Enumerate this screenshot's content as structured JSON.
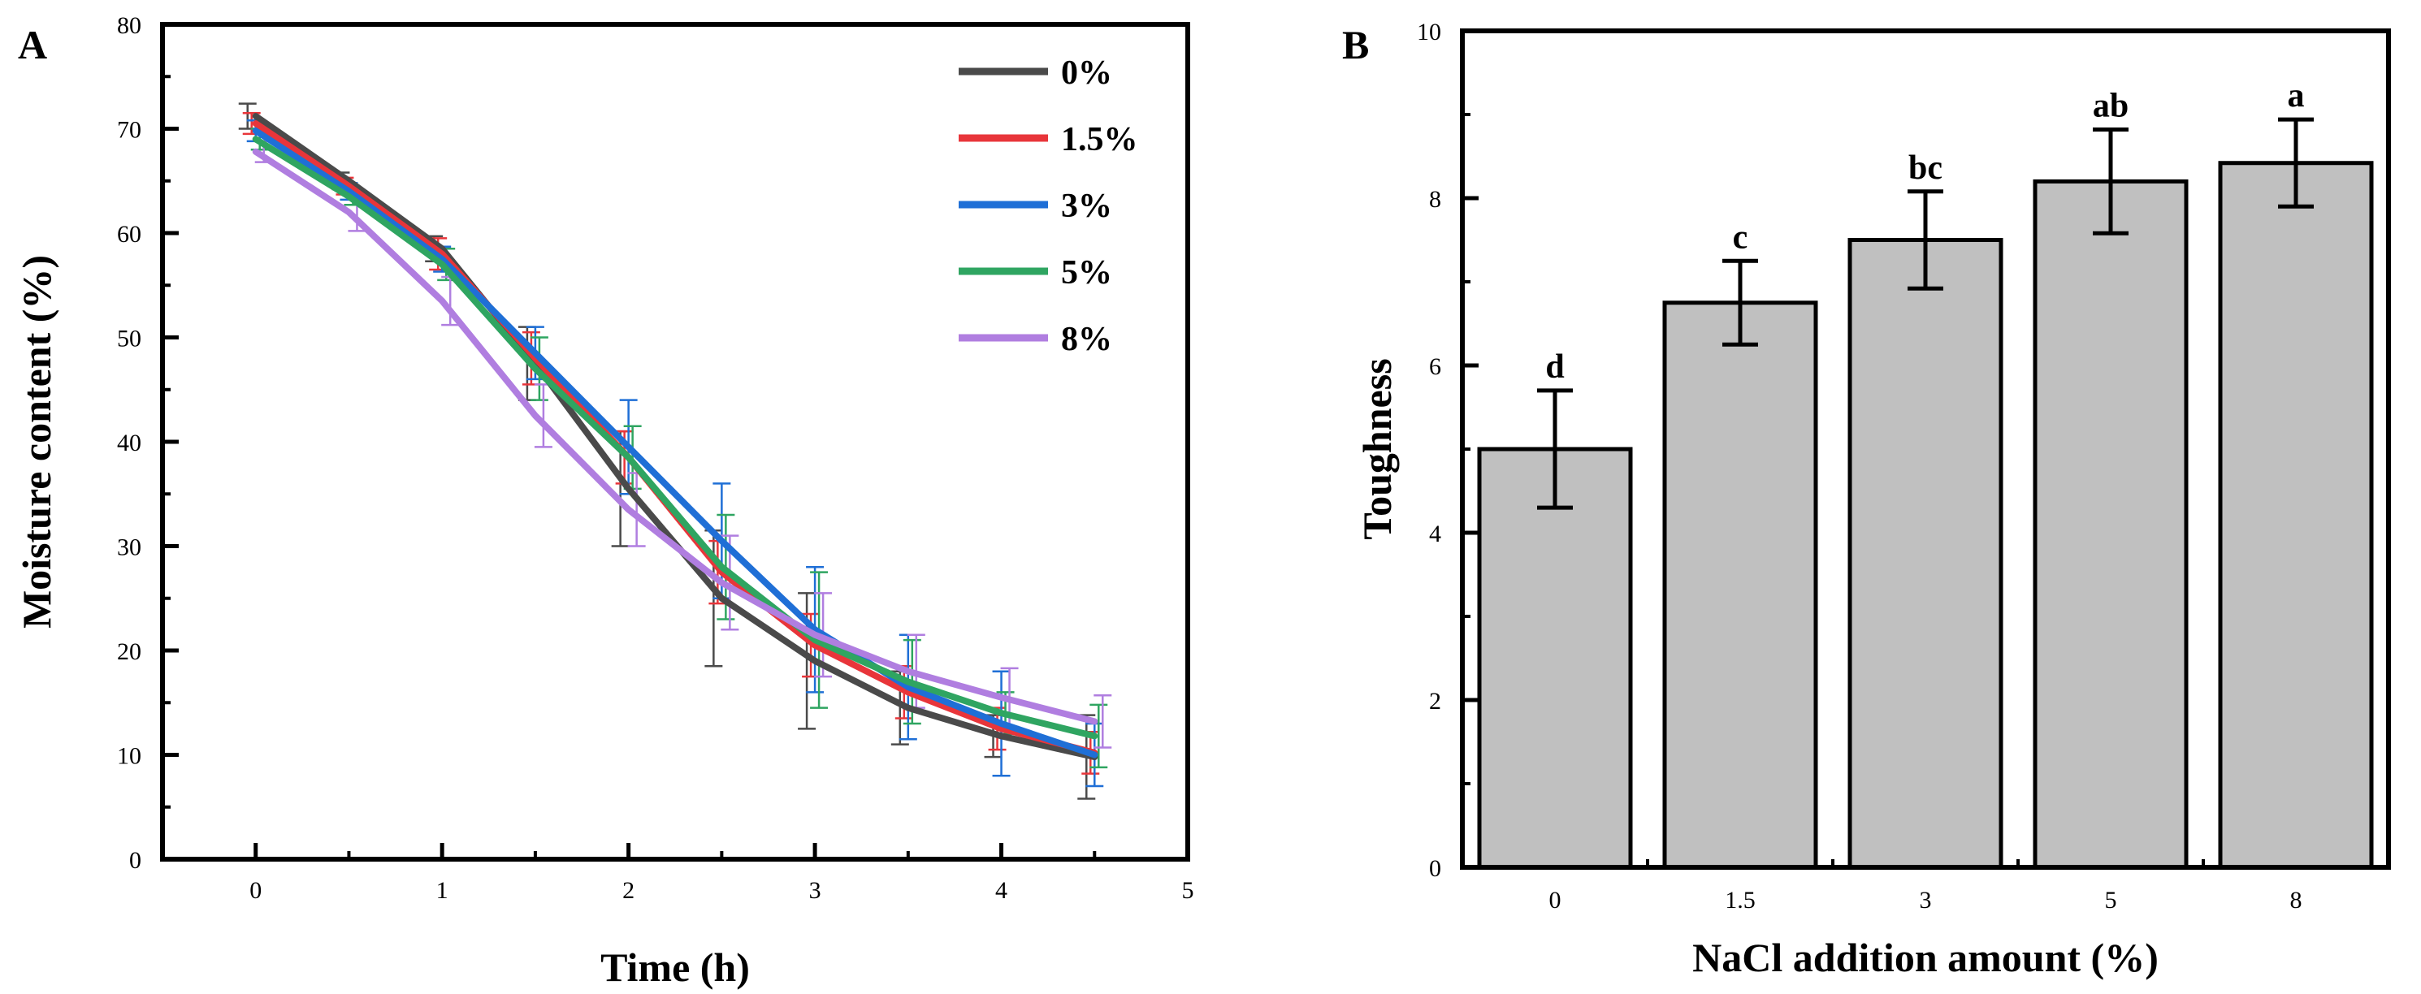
{
  "chart_data": [
    {
      "type": "line",
      "panel": "A",
      "xlabel": "Time (h)",
      "ylabel": "Moisture content (%)",
      "xlim": [
        -0.5,
        5
      ],
      "ylim": [
        0,
        80
      ],
      "xticks": [
        0,
        1,
        2,
        3,
        4,
        5
      ],
      "yticks": [
        0,
        10,
        20,
        30,
        40,
        50,
        60,
        70,
        80
      ],
      "legend_position": "top-right",
      "x": [
        0,
        0.5,
        1,
        1.5,
        2,
        2.5,
        3,
        3.5,
        4,
        4.5
      ],
      "series": [
        {
          "name": "0%",
          "color": "#4a4a4a",
          "values": [
            71.2,
            65.0,
            58.5,
            47.5,
            35.5,
            25.0,
            19.0,
            14.5,
            11.8,
            9.8
          ],
          "errors": [
            1.2,
            0.8,
            1.2,
            3.5,
            5.5,
            6.5,
            6.5,
            3.5,
            2.0,
            4.0
          ]
        },
        {
          "name": "1.5%",
          "color": "#e8353a",
          "values": [
            70.5,
            64.5,
            58.0,
            48.0,
            38.5,
            27.5,
            20.5,
            16.0,
            12.5,
            10.2
          ],
          "errors": [
            1.0,
            0.8,
            1.5,
            2.5,
            2.5,
            3.0,
            3.0,
            2.5,
            2.0,
            2.0
          ]
        },
        {
          "name": "3%",
          "color": "#1f6fd6",
          "values": [
            69.8,
            64.0,
            57.5,
            48.5,
            39.5,
            30.5,
            22.0,
            16.5,
            13.0,
            10.0
          ],
          "errors": [
            1.0,
            0.8,
            1.2,
            2.5,
            4.5,
            5.5,
            6.0,
            5.0,
            5.0,
            3.0
          ]
        },
        {
          "name": "5%",
          "color": "#2fa561",
          "values": [
            69.0,
            63.5,
            57.0,
            47.0,
            38.5,
            28.0,
            21.0,
            17.0,
            14.0,
            11.8
          ],
          "errors": [
            1.0,
            0.8,
            1.5,
            3.0,
            3.0,
            5.0,
            6.5,
            4.0,
            2.0,
            3.0
          ]
        },
        {
          "name": "8%",
          "color": "#b07ee0",
          "values": [
            67.8,
            62.0,
            53.5,
            42.5,
            33.5,
            26.5,
            21.5,
            18.0,
            15.5,
            13.2
          ],
          "errors": [
            1.0,
            1.8,
            2.3,
            3.0,
            3.5,
            4.5,
            4.0,
            3.5,
            2.8,
            2.5
          ]
        }
      ]
    },
    {
      "type": "bar",
      "panel": "B",
      "xlabel": "NaCl addition amount (%)",
      "ylabel": "Toughness",
      "ylim": [
        0,
        10
      ],
      "yticks": [
        0,
        2,
        4,
        6,
        8,
        10
      ],
      "categories": [
        "0",
        "1.5",
        "3",
        "5",
        "8"
      ],
      "values": [
        5.0,
        6.75,
        7.5,
        8.2,
        8.42
      ],
      "errors": [
        0.7,
        0.5,
        0.58,
        0.62,
        0.52
      ],
      "significance": [
        "d",
        "c",
        "bc",
        "ab",
        "a"
      ],
      "bar_color": "#c0c0c0"
    }
  ],
  "panel_labels": {
    "a": "A",
    "b": "B"
  }
}
